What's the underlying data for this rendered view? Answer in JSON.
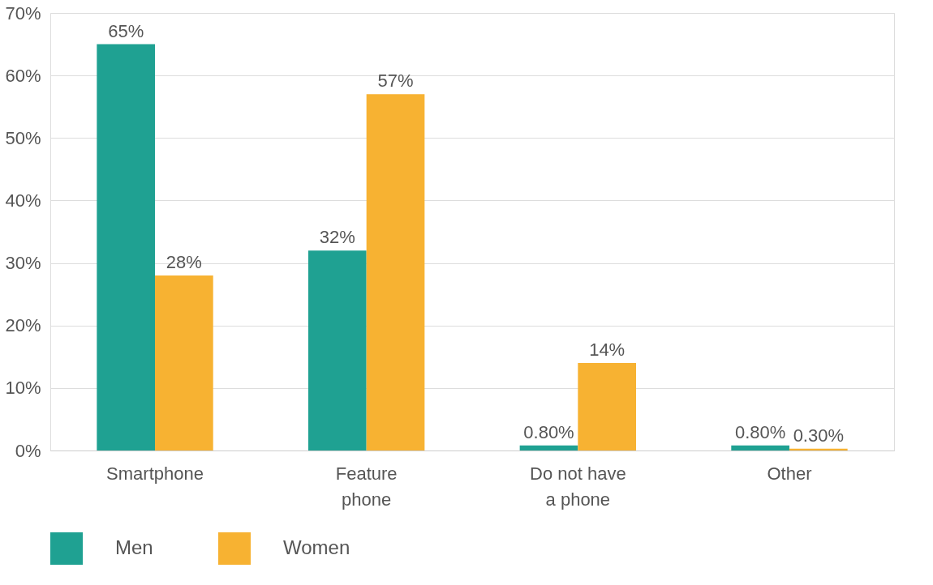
{
  "chart_data": {
    "type": "bar",
    "categories": [
      "Smartphone",
      "Feature phone",
      "Do not have a phone",
      "Other"
    ],
    "series": [
      {
        "name": "Men",
        "color": "#1fa192",
        "values": [
          65,
          32,
          0.8,
          0.8
        ],
        "value_labels": [
          "65%",
          "32%",
          "0.80%",
          "0.80%"
        ]
      },
      {
        "name": "Women",
        "color": "#f7b232",
        "values": [
          28,
          57,
          14,
          0.3
        ],
        "value_labels": [
          "28%",
          "57%",
          "14%",
          "0.30%"
        ]
      }
    ],
    "ylim": [
      0,
      70
    ],
    "yticks": [
      {
        "value": 0,
        "label": "0%"
      },
      {
        "value": 10,
        "label": "10%"
      },
      {
        "value": 20,
        "label": "20%"
      },
      {
        "value": 30,
        "label": "30%"
      },
      {
        "value": 40,
        "label": "40%"
      },
      {
        "value": 50,
        "label": "50%"
      },
      {
        "value": 60,
        "label": "60%"
      },
      {
        "value": 70,
        "label": "70%"
      }
    ],
    "grid": "y",
    "legend": "bottom"
  }
}
